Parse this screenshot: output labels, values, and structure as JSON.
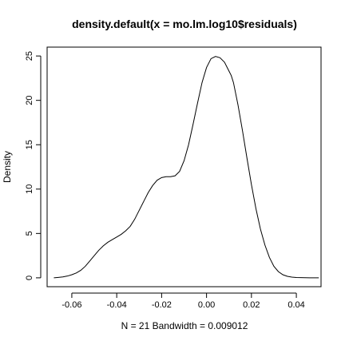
{
  "chart_data": {
    "type": "line",
    "title": "density.default(x = mo.lm.log10$residuals)",
    "xlabel": "N = 21   Bandwidth = 0.009012",
    "ylabel": "Density",
    "xlim": [
      -0.071,
      0.051
    ],
    "ylim": [
      -1.0,
      26.0
    ],
    "x_ticks": [
      -0.06,
      -0.04,
      -0.02,
      0.0,
      0.02,
      0.04
    ],
    "x_tick_labels": [
      "-0.06",
      "-0.04",
      "-0.02",
      "0.00",
      "0.02",
      "0.04"
    ],
    "y_ticks": [
      0,
      5,
      10,
      15,
      20,
      25
    ],
    "y_tick_labels": [
      "0",
      "5",
      "10",
      "15",
      "20",
      "25"
    ],
    "grid": false,
    "series": [
      {
        "x": [
          -0.068,
          -0.066,
          -0.064,
          -0.062,
          -0.06,
          -0.058,
          -0.056,
          -0.054,
          -0.052,
          -0.05,
          -0.048,
          -0.046,
          -0.044,
          -0.042,
          -0.04,
          -0.038,
          -0.036,
          -0.034,
          -0.032,
          -0.03,
          -0.028,
          -0.026,
          -0.024,
          -0.022,
          -0.02,
          -0.018,
          -0.016,
          -0.014,
          -0.012,
          -0.01,
          -0.008,
          -0.006,
          -0.004,
          -0.002,
          0.0,
          0.002,
          0.004,
          0.006,
          0.008,
          0.01,
          0.011,
          0.012,
          0.014,
          0.016,
          0.018,
          0.02,
          0.022,
          0.024,
          0.026,
          0.028,
          0.03,
          0.032,
          0.034,
          0.036,
          0.038,
          0.04,
          0.042,
          0.044,
          0.046,
          0.048,
          0.05
        ],
        "y": [
          0.0,
          0.05,
          0.1,
          0.2,
          0.35,
          0.55,
          0.85,
          1.3,
          1.9,
          2.5,
          3.1,
          3.6,
          4.0,
          4.3,
          4.6,
          4.9,
          5.3,
          5.8,
          6.6,
          7.6,
          8.6,
          9.6,
          10.4,
          11.0,
          11.3,
          11.4,
          11.4,
          11.5,
          12.0,
          13.2,
          15.0,
          17.3,
          19.7,
          22.0,
          23.7,
          24.7,
          24.95,
          24.8,
          24.3,
          23.3,
          22.8,
          22.0,
          19.5,
          16.6,
          13.5,
          10.5,
          7.8,
          5.5,
          3.7,
          2.3,
          1.3,
          0.7,
          0.35,
          0.17,
          0.08,
          0.04,
          0.02,
          0.01,
          0.0,
          0.0,
          0.0
        ]
      }
    ]
  }
}
